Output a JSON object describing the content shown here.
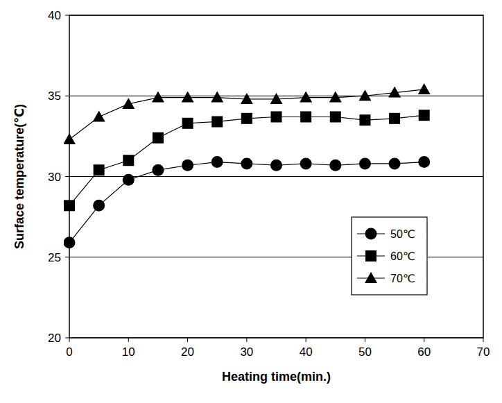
{
  "chart_data": {
    "type": "line",
    "x_label": "Heating time(min.)",
    "y_label": "Surface temperature(℃)",
    "x": [
      0,
      5,
      10,
      15,
      20,
      25,
      30,
      35,
      40,
      45,
      50,
      55,
      60
    ],
    "series": [
      {
        "name": "50℃",
        "color": "#000000",
        "marker": "circle",
        "line_style": "solid",
        "values": [
          25.9,
          28.2,
          29.8,
          30.4,
          30.7,
          30.9,
          30.8,
          30.7,
          30.8,
          30.7,
          30.8,
          30.8,
          30.9
        ]
      },
      {
        "name": "60℃",
        "color": "#000000",
        "marker": "square",
        "line_style": "solid",
        "values": [
          28.2,
          30.4,
          31.0,
          32.4,
          33.3,
          33.4,
          33.6,
          33.7,
          33.7,
          33.7,
          33.5,
          33.6,
          33.8
        ]
      },
      {
        "name": "70℃",
        "color": "#000000",
        "marker": "triangle",
        "line_style": "solid",
        "values": [
          32.3,
          33.7,
          34.5,
          34.9,
          34.9,
          34.9,
          34.8,
          34.8,
          34.9,
          34.9,
          35.0,
          35.2,
          35.4
        ]
      }
    ],
    "xlim": [
      0,
      70
    ],
    "xticks": [
      0,
      10,
      20,
      30,
      40,
      50,
      60,
      70
    ],
    "ylim": [
      20,
      40
    ],
    "yticks": [
      20,
      25,
      30,
      35,
      40
    ],
    "grid": "y",
    "legend": "lower right"
  }
}
